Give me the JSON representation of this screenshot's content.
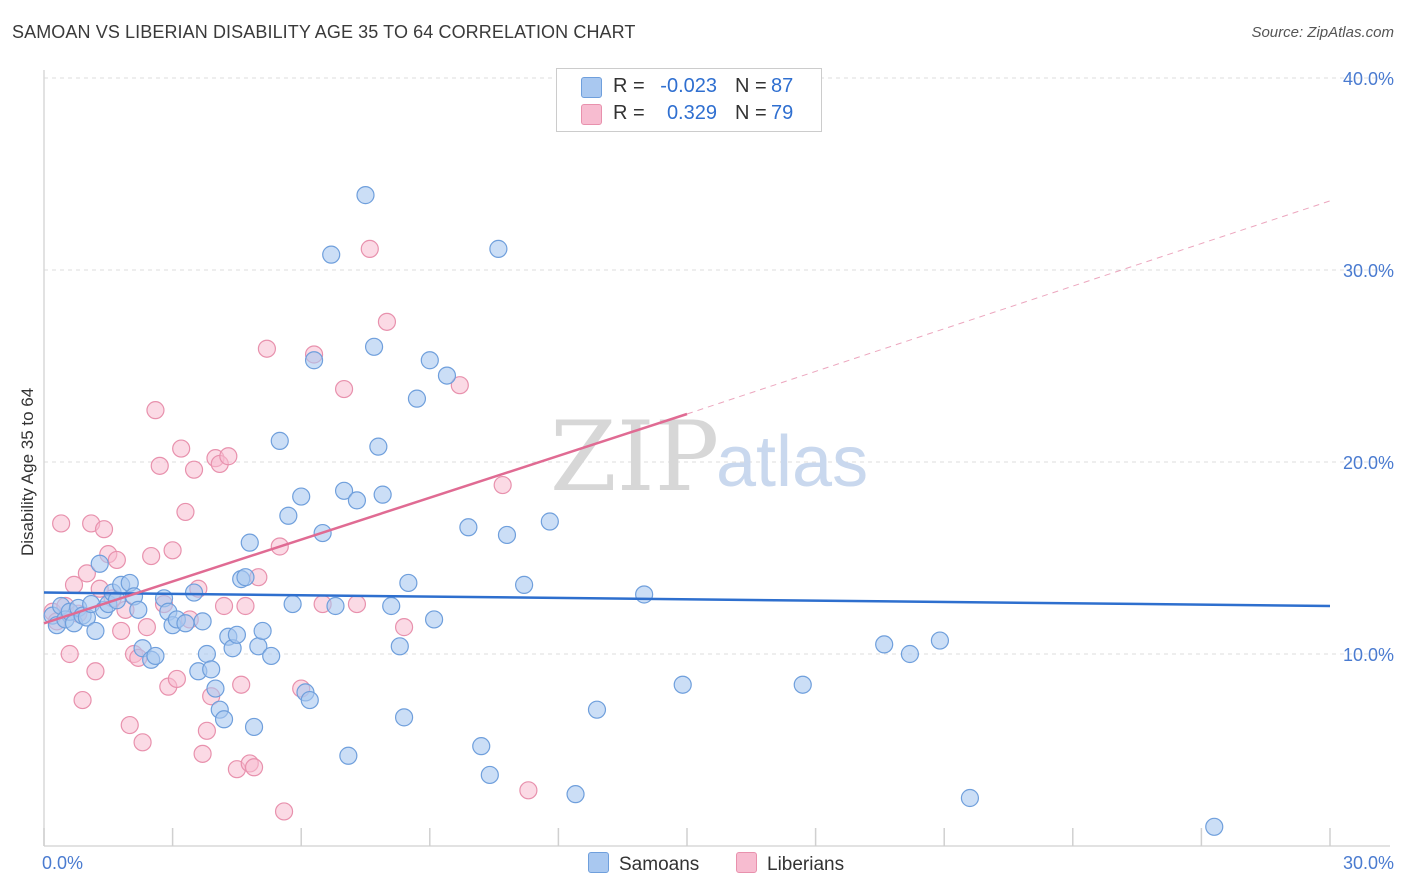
{
  "title": "SAMOAN VS LIBERIAN DISABILITY AGE 35 TO 64 CORRELATION CHART",
  "source": "Source: ZipAtlas.com",
  "watermark": {
    "zip": "ZIP",
    "atlas": "atlas"
  },
  "legend": {
    "samoans": {
      "r_label": "R =",
      "r_value": "-0.023",
      "n_label": "N =",
      "n_value": "87"
    },
    "liberians": {
      "r_label": "R =",
      "r_value": "0.329",
      "n_label": "N =",
      "n_value": "79"
    }
  },
  "bottom_legend": {
    "samoans": "Samoans",
    "liberians": "Liberians"
  },
  "colors": {
    "samoans_fill": "#a9c8f0",
    "samoans_stroke": "#6f9fdc",
    "samoans_line": "#2e6fce",
    "liberians_fill": "#f7bcd0",
    "liberians_stroke": "#e891ad",
    "liberians_line": "#e06b93",
    "tick_text": "#4a7bd0",
    "grid": "#dddddd"
  },
  "chart_data": {
    "type": "scatter",
    "title": "SAMOAN VS LIBERIAN DISABILITY AGE 35 TO 64 CORRELATION CHART",
    "xlabel": "",
    "ylabel": "Disability Age 35 to 64",
    "xlim": [
      0,
      30
    ],
    "ylim": [
      0,
      40
    ],
    "x_tick_labels": [
      "0.0%",
      "30.0%"
    ],
    "y_tick_labels": [
      "10.0%",
      "20.0%",
      "30.0%",
      "40.0%"
    ],
    "y_ticks": [
      10,
      20,
      30,
      40
    ],
    "grid": true,
    "series": [
      {
        "name": "Samoans",
        "r": -0.023,
        "n": 87,
        "trend": {
          "x": [
            0,
            30
          ],
          "y": [
            13.2,
            12.5
          ],
          "style": "solid"
        },
        "x": [
          0.2,
          0.3,
          0.4,
          0.5,
          0.6,
          0.7,
          0.8,
          0.9,
          1.0,
          1.1,
          1.2,
          1.3,
          1.4,
          1.5,
          1.6,
          1.7,
          1.8,
          2.0,
          2.1,
          2.2,
          2.3,
          2.5,
          2.6,
          2.8,
          2.9,
          3.0,
          3.1,
          3.3,
          3.5,
          3.6,
          3.7,
          3.8,
          3.9,
          4.0,
          4.1,
          4.2,
          4.3,
          4.4,
          4.5,
          4.6,
          4.7,
          4.8,
          4.9,
          5.0,
          5.1,
          5.3,
          5.5,
          5.7,
          5.8,
          6.0,
          6.1,
          6.2,
          6.3,
          6.5,
          6.7,
          6.8,
          7.0,
          7.1,
          7.3,
          7.5,
          7.7,
          7.8,
          7.9,
          8.1,
          8.3,
          8.4,
          8.5,
          8.7,
          9.0,
          9.1,
          9.4,
          9.9,
          10.2,
          10.4,
          10.6,
          10.8,
          11.2,
          11.8,
          12.4,
          12.9,
          14.0,
          14.9,
          17.7,
          19.6,
          20.2,
          20.9,
          21.6,
          27.3
        ],
        "y": [
          12.0,
          11.5,
          12.5,
          11.8,
          12.2,
          11.6,
          12.4,
          12.0,
          11.9,
          12.6,
          11.2,
          14.7,
          12.3,
          12.6,
          13.2,
          12.8,
          13.6,
          13.7,
          13.0,
          12.3,
          10.3,
          9.7,
          9.9,
          12.9,
          12.2,
          11.5,
          11.8,
          11.6,
          13.2,
          9.1,
          11.7,
          10.0,
          9.2,
          8.2,
          7.1,
          6.6,
          10.9,
          10.3,
          11.0,
          13.9,
          14.0,
          15.8,
          6.2,
          10.4,
          11.2,
          9.9,
          21.1,
          17.2,
          12.6,
          18.2,
          8.0,
          7.6,
          25.3,
          16.3,
          30.8,
          12.5,
          18.5,
          4.7,
          18.0,
          33.9,
          26.0,
          20.8,
          18.3,
          12.5,
          10.4,
          6.7,
          13.7,
          23.3,
          25.3,
          11.8,
          24.5,
          16.6,
          5.2,
          3.7,
          31.1,
          16.2,
          13.6,
          16.9,
          2.7,
          7.1,
          13.1,
          8.4,
          8.4,
          10.5,
          10.0,
          10.7,
          2.5,
          1.0
        ]
      },
      {
        "name": "Liberians",
        "r": 0.329,
        "n": 79,
        "trend": {
          "x": [
            0,
            15
          ],
          "y": [
            11.6,
            22.5
          ],
          "style": "solid",
          "extension": {
            "x": [
              15,
              30
            ],
            "y": [
              22.5,
              33.6
            ],
            "style": "dashed"
          }
        },
        "x": [
          0.2,
          0.3,
          0.4,
          0.5,
          0.6,
          0.7,
          0.8,
          0.9,
          1.0,
          1.1,
          1.2,
          1.3,
          1.4,
          1.5,
          1.6,
          1.7,
          1.8,
          1.9,
          2.0,
          2.1,
          2.2,
          2.3,
          2.4,
          2.5,
          2.6,
          2.7,
          2.8,
          2.9,
          3.0,
          3.1,
          3.2,
          3.3,
          3.4,
          3.5,
          3.6,
          3.7,
          3.8,
          3.9,
          4.0,
          4.1,
          4.2,
          4.3,
          4.5,
          4.6,
          4.7,
          4.8,
          4.9,
          5.0,
          5.2,
          5.5,
          5.6,
          6.0,
          6.3,
          6.5,
          7.0,
          7.3,
          7.6,
          8.0,
          8.4,
          9.7,
          10.7,
          11.3
        ],
        "y": [
          12.2,
          11.7,
          16.8,
          12.5,
          10.0,
          13.6,
          12.1,
          7.6,
          14.2,
          16.8,
          9.1,
          13.4,
          16.5,
          15.2,
          12.9,
          14.9,
          11.2,
          12.3,
          6.3,
          10.0,
          9.8,
          5.4,
          11.4,
          15.1,
          22.7,
          19.8,
          12.6,
          8.3,
          15.4,
          8.7,
          20.7,
          17.4,
          11.8,
          19.6,
          13.4,
          4.8,
          6.0,
          7.8,
          20.2,
          19.9,
          12.5,
          20.3,
          4.0,
          8.4,
          12.5,
          4.3,
          4.1,
          14.0,
          25.9,
          15.6,
          1.8,
          8.2,
          25.6,
          12.6,
          23.8,
          12.6,
          31.1,
          27.3,
          11.4,
          24.0,
          18.8,
          2.9
        ]
      }
    ]
  }
}
